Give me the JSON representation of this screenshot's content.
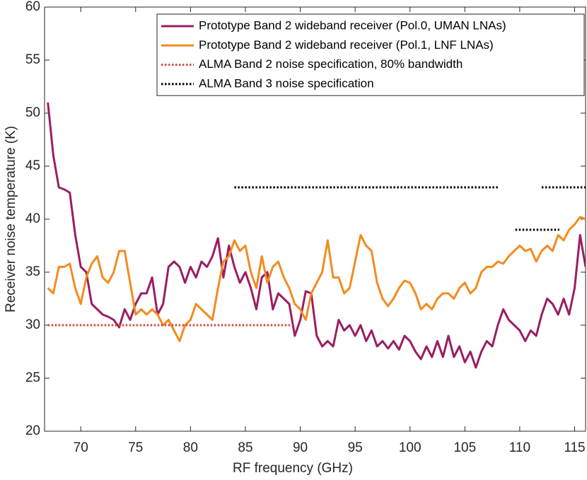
{
  "chart_data": {
    "type": "line",
    "xlabel": "RF frequency (GHz)",
    "ylabel": "Receiver noise temperature (K)",
    "xlim": [
      66.7,
      116
    ],
    "ylim": [
      20,
      60
    ],
    "xticks": [
      70,
      75,
      80,
      85,
      90,
      95,
      100,
      105,
      110,
      115
    ],
    "yticks": [
      20,
      25,
      30,
      35,
      40,
      45,
      50,
      55,
      60
    ],
    "legend": "upper right",
    "x": [
      67,
      67.5,
      68,
      68.5,
      69,
      69.5,
      70,
      70.5,
      71,
      71.5,
      72,
      72.5,
      73,
      73.5,
      74,
      74.5,
      75,
      75.5,
      76,
      76.5,
      77,
      77.5,
      78,
      78.5,
      79,
      79.5,
      80,
      80.5,
      81,
      81.5,
      82,
      82.5,
      83,
      83.5,
      84,
      84.5,
      85,
      85.5,
      86,
      86.5,
      87,
      87.5,
      88,
      88.5,
      89,
      89.5,
      90,
      90.5,
      91,
      91.5,
      92,
      92.5,
      93,
      93.5,
      94,
      94.5,
      95,
      95.5,
      96,
      96.5,
      97,
      97.5,
      98,
      98.5,
      99,
      99.5,
      100,
      100.5,
      101,
      101.5,
      102,
      102.5,
      103,
      103.5,
      104,
      104.5,
      105,
      105.5,
      106,
      106.5,
      107,
      107.5,
      108,
      108.5,
      109,
      109.5,
      110,
      110.5,
      111,
      111.5,
      112,
      112.5,
      113,
      113.5,
      114,
      114.5,
      115,
      115.5,
      116
    ],
    "series": [
      {
        "name": "Prototype Band 2 wideband receiver (Pol.0, UMAN LNAs)",
        "color": "#9a1e63",
        "style": "solid",
        "values": [
          51,
          46,
          43,
          42.8,
          42.5,
          38.5,
          35.5,
          35,
          32,
          31.5,
          31,
          30.8,
          30.5,
          29.8,
          31.5,
          30.5,
          32,
          33,
          33,
          34.5,
          31,
          32,
          35.5,
          36,
          35.5,
          34,
          35.5,
          34.5,
          36,
          35.5,
          36.5,
          38.2,
          34.5,
          37.5,
          35.5,
          34,
          35,
          33.5,
          31.5,
          34.5,
          35,
          31.5,
          33,
          32.5,
          32,
          29,
          30.5,
          33.2,
          33,
          29,
          28,
          28.5,
          28,
          30.5,
          29.5,
          30,
          29,
          30,
          28.5,
          29.5,
          28,
          28.5,
          27.8,
          28.5,
          27.7,
          29,
          28.5,
          27.5,
          26.8,
          28,
          27,
          28.5,
          27,
          29,
          27,
          28,
          26.5,
          27.5,
          26,
          27.5,
          28.5,
          28,
          30,
          31.5,
          30.5,
          30,
          29.5,
          28.5,
          29.5,
          29,
          31,
          32.5,
          32,
          31,
          32.5,
          31,
          33.5,
          38.5,
          35.5
        ]
      },
      {
        "name": "Prototype Band 2 wideband receiver (Pol.1, LNF LNAs)",
        "color": "#f28c20",
        "style": "solid",
        "values": [
          33.5,
          33,
          35.5,
          35.5,
          35.8,
          33.5,
          32,
          34.5,
          35.8,
          36.5,
          34.5,
          34,
          35,
          37,
          37,
          34,
          31,
          31.5,
          31,
          31.5,
          31,
          30,
          30.5,
          29.5,
          28.5,
          30,
          30.5,
          32,
          31.5,
          31,
          30.5,
          33.5,
          36,
          36.5,
          38,
          37,
          37.5,
          35,
          33.5,
          36.5,
          34,
          35.5,
          36,
          34.5,
          33.5,
          32,
          31.5,
          30.5,
          33,
          34,
          35,
          38,
          34.5,
          34.5,
          33,
          33.5,
          36,
          38.5,
          37.5,
          37,
          34,
          32.5,
          31.8,
          32.5,
          33.5,
          34.2,
          34,
          33,
          31.5,
          32,
          31.5,
          32.5,
          33,
          33,
          32.5,
          33.5,
          34,
          33,
          33.5,
          35,
          35.5,
          35.5,
          36,
          35.8,
          36.5,
          37,
          37.5,
          37,
          37.2,
          36,
          37,
          37.5,
          37,
          38.5,
          38,
          39,
          39.5,
          40.2,
          40
        ]
      },
      {
        "name": "ALMA Band 2 noise specification, 80% bandwidth",
        "color": "#d9473a",
        "style": "dotted",
        "x": [
          67,
          89.3
        ],
        "values": [
          30,
          30
        ]
      },
      {
        "name": "ALMA Band 3 noise specification",
        "color": "#000000",
        "style": "dotted",
        "x": [
          84,
          108,
          null,
          109.6,
          113.6,
          null,
          112,
          116
        ],
        "values": [
          43,
          43,
          null,
          39,
          39,
          null,
          43,
          43
        ]
      }
    ]
  }
}
